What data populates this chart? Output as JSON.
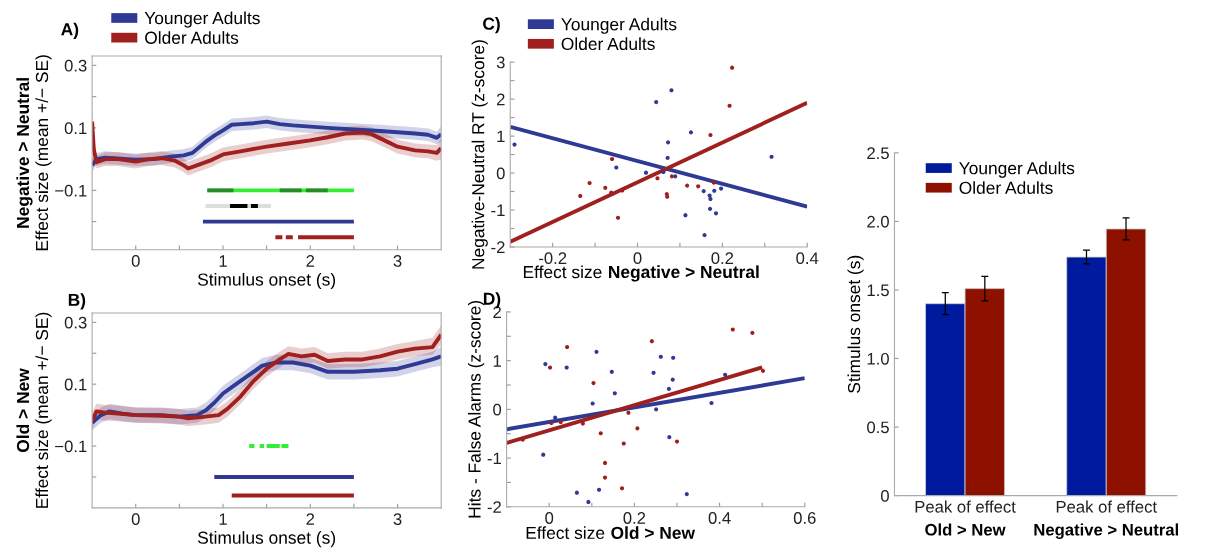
{
  "chart_data": [
    {
      "type": "line",
      "title": "A)",
      "xlabel": "Stimulus onset (s)",
      "ylabel": "Effect size (mean +/− SE)",
      "annotations": [
        "Negative > Neutral"
      ],
      "xlim": [
        -0.5,
        3.5
      ],
      "ylim": [
        -0.29,
        0.33
      ],
      "xticks": [
        0,
        {
          "value": 0.5,
          "label": null
        },
        1,
        {
          "value": 1.5,
          "label": null
        },
        2,
        {
          "value": 2.5,
          "label": null
        },
        3
      ],
      "yticks": [
        {
          "value": -0.2,
          "label": null
        },
        {
          "value": -0.1,
          "label": "−0.1"
        },
        {
          "value": 0,
          "label": null
        },
        0.1,
        {
          "value": 0.2,
          "label": null
        },
        0.3
      ],
      "legend": "top",
      "series": [
        {
          "name": "Younger Adults",
          "color": "#2e3a94",
          "x": [
            -0.5,
            -0.45,
            -0.35,
            -0.25,
            -0.1,
            0,
            0.2,
            0.4,
            0.55,
            0.65,
            0.8,
            0.9,
            1.0,
            1.1,
            1.2,
            1.35,
            1.5,
            1.65,
            1.8,
            2.0,
            2.2,
            2.5,
            2.8,
            3.0,
            3.2,
            3.35,
            3.45,
            3.5
          ],
          "values": [
            -0.02,
            0.0,
            0.005,
            0.003,
            0.0,
            -0.002,
            0.0,
            0.008,
            0.012,
            0.02,
            0.055,
            0.075,
            0.092,
            0.11,
            0.112,
            0.115,
            0.12,
            0.112,
            0.108,
            0.104,
            0.1,
            0.095,
            0.09,
            0.086,
            0.082,
            0.078,
            0.068,
            0.08
          ],
          "lower": [
            -0.04,
            -0.02,
            -0.015,
            -0.017,
            -0.02,
            -0.022,
            -0.02,
            -0.012,
            -0.008,
            0.0,
            0.035,
            0.055,
            0.072,
            0.09,
            0.092,
            0.095,
            0.1,
            0.092,
            0.088,
            0.084,
            0.08,
            0.075,
            0.07,
            0.066,
            0.062,
            0.058,
            0.048,
            0.055
          ],
          "upper": [
            0.0,
            0.02,
            0.025,
            0.023,
            0.02,
            0.018,
            0.02,
            0.028,
            0.032,
            0.04,
            0.075,
            0.095,
            0.112,
            0.13,
            0.132,
            0.135,
            0.14,
            0.132,
            0.128,
            0.124,
            0.12,
            0.115,
            0.11,
            0.106,
            0.102,
            0.098,
            0.088,
            0.105
          ]
        },
        {
          "name": "Older Adults",
          "color": "#a01f1f",
          "x": [
            -0.5,
            -0.48,
            -0.45,
            -0.35,
            -0.2,
            0,
            0.15,
            0.3,
            0.45,
            0.55,
            0.6,
            0.7,
            0.85,
            1.0,
            1.2,
            1.5,
            1.75,
            2.0,
            2.2,
            2.4,
            2.6,
            2.7,
            2.85,
            3.0,
            3.2,
            3.35,
            3.45,
            3.5
          ],
          "values": [
            0.12,
            0.03,
            -0.01,
            0.0,
            0.0,
            -0.008,
            0.0,
            0.003,
            -0.005,
            -0.02,
            -0.03,
            -0.02,
            -0.005,
            0.015,
            0.025,
            0.04,
            0.05,
            0.06,
            0.07,
            0.082,
            0.085,
            0.08,
            0.06,
            0.04,
            0.028,
            0.025,
            0.02,
            0.035
          ],
          "lower": [
            0.08,
            0.0,
            -0.03,
            -0.022,
            -0.022,
            -0.03,
            -0.022,
            -0.019,
            -0.027,
            -0.042,
            -0.052,
            -0.042,
            -0.027,
            -0.007,
            0.003,
            0.018,
            0.028,
            0.038,
            0.048,
            0.06,
            0.063,
            0.058,
            0.038,
            0.018,
            0.006,
            0.003,
            -0.005,
            0.0
          ],
          "upper": [
            0.16,
            0.06,
            0.01,
            0.022,
            0.022,
            0.014,
            0.022,
            0.025,
            0.017,
            0.002,
            -0.008,
            0.002,
            0.017,
            0.037,
            0.047,
            0.062,
            0.072,
            0.082,
            0.092,
            0.104,
            0.107,
            0.102,
            0.082,
            0.062,
            0.05,
            0.047,
            0.045,
            0.07
          ]
        },
        {
          "color": "#33ee33",
          "x": [
            0.82,
            2.5
          ],
          "values": [
            -0.1,
            -0.1
          ]
        },
        {
          "color": "#2a8a2a",
          "x": [
            0.82,
            1.12,
            1.13,
            1.65,
            1.9,
            1.92,
            1.95,
            2.2
          ],
          "values": [
            -0.1,
            -0.1,
            null,
            -0.1,
            -0.1,
            null,
            -0.1,
            -0.1
          ]
        },
        {
          "color": "#dddddd",
          "x": [
            0.8,
            1.55
          ],
          "values": [
            -0.15,
            -0.15
          ]
        },
        {
          "color": "#000000",
          "x": [
            1.08,
            1.28,
            1.3,
            1.32,
            1.4
          ],
          "values": [
            -0.15,
            -0.15,
            null,
            -0.15,
            -0.15
          ]
        },
        {
          "color": "#2e3a94",
          "x": [
            0.77,
            2.5
          ],
          "values": [
            -0.2,
            -0.2
          ]
        },
        {
          "color": "#a01f1f",
          "x": [
            1.6,
            1.68,
            1.7,
            1.72,
            1.8,
            1.82,
            1.86,
            2.5
          ],
          "values": [
            -0.25,
            -0.25,
            null,
            -0.25,
            -0.25,
            null,
            -0.25,
            -0.25
          ]
        }
      ]
    },
    {
      "type": "line",
      "title": "B)",
      "xlabel": "Stimulus onset (s)",
      "ylabel": "Effect size (mean +/− SE)",
      "annotations": [
        "Old > New"
      ],
      "xlim": [
        -0.5,
        3.5
      ],
      "ylim": [
        -0.3,
        0.33
      ],
      "xticks": [
        0,
        {
          "value": 0.5,
          "label": null
        },
        1,
        {
          "value": 1.5,
          "label": null
        },
        2,
        {
          "value": 2.5,
          "label": null
        },
        3
      ],
      "yticks": [
        {
          "value": -0.2,
          "label": null
        },
        {
          "value": -0.1,
          "label": "−0.1"
        },
        {
          "value": 0,
          "label": null
        },
        0.1,
        {
          "value": 0.2,
          "label": null
        },
        0.3
      ],
      "series": [
        {
          "color": "#2e3a94",
          "x": [
            -0.5,
            -0.4,
            -0.3,
            -0.15,
            0,
            0.3,
            0.5,
            0.7,
            0.8,
            0.9,
            1.0,
            1.15,
            1.3,
            1.45,
            1.6,
            1.8,
            2.0,
            2.2,
            2.5,
            2.8,
            3.0,
            3.2,
            3.4,
            3.5
          ],
          "values": [
            -0.025,
            0.0,
            0.012,
            0.005,
            0.0,
            0.0,
            -0.005,
            0.0,
            0.015,
            0.04,
            0.07,
            0.1,
            0.13,
            0.16,
            0.17,
            0.17,
            0.16,
            0.14,
            0.14,
            0.145,
            0.15,
            0.165,
            0.18,
            0.19
          ],
          "lower": [
            -0.05,
            -0.025,
            -0.013,
            -0.02,
            -0.025,
            -0.025,
            -0.03,
            -0.025,
            -0.01,
            0.015,
            0.045,
            0.075,
            0.105,
            0.135,
            0.145,
            0.145,
            0.135,
            0.115,
            0.115,
            0.12,
            0.125,
            0.14,
            0.155,
            0.16
          ],
          "upper": [
            0.0,
            0.025,
            0.037,
            0.03,
            0.025,
            0.025,
            0.02,
            0.025,
            0.04,
            0.065,
            0.095,
            0.125,
            0.155,
            0.185,
            0.195,
            0.195,
            0.185,
            0.165,
            0.165,
            0.17,
            0.175,
            0.19,
            0.205,
            0.22
          ]
        },
        {
          "color": "#a01f1f",
          "x": [
            -0.5,
            -0.45,
            -0.35,
            -0.2,
            0,
            0.3,
            0.5,
            0.6,
            0.8,
            0.95,
            1.05,
            1.2,
            1.35,
            1.5,
            1.65,
            1.75,
            1.9,
            2.05,
            2.2,
            2.4,
            2.6,
            2.8,
            3.0,
            3.2,
            3.4,
            3.5
          ],
          "values": [
            -0.02,
            0.012,
            0.008,
            0.005,
            0.0,
            -0.002,
            -0.005,
            -0.01,
            -0.005,
            0.0,
            0.02,
            0.06,
            0.11,
            0.15,
            0.18,
            0.198,
            0.19,
            0.195,
            0.175,
            0.18,
            0.18,
            0.19,
            0.205,
            0.215,
            0.22,
            0.26
          ],
          "lower": [
            -0.05,
            -0.013,
            -0.017,
            -0.02,
            -0.025,
            -0.027,
            -0.03,
            -0.035,
            -0.03,
            -0.025,
            -0.005,
            0.035,
            0.085,
            0.125,
            0.155,
            0.173,
            0.165,
            0.17,
            0.15,
            0.155,
            0.155,
            0.165,
            0.18,
            0.19,
            0.195,
            0.23
          ],
          "upper": [
            0.01,
            0.037,
            0.033,
            0.03,
            0.025,
            0.023,
            0.02,
            0.015,
            0.02,
            0.025,
            0.045,
            0.085,
            0.135,
            0.175,
            0.205,
            0.223,
            0.215,
            0.22,
            0.2,
            0.205,
            0.205,
            0.215,
            0.23,
            0.24,
            0.25,
            0.29
          ]
        },
        {
          "color": "#33ee33",
          "x": [
            1.3,
            1.36,
            1.37,
            1.42,
            1.47,
            1.48,
            1.5,
            1.65,
            1.66,
            1.67,
            1.75
          ],
          "values": [
            -0.1,
            -0.1,
            null,
            -0.1,
            -0.1,
            null,
            -0.1,
            -0.1,
            null,
            -0.1,
            -0.1
          ]
        },
        {
          "color": "#2e3a94",
          "x": [
            0.9,
            2.5
          ],
          "values": [
            -0.2,
            -0.2
          ]
        },
        {
          "color": "#a01f1f",
          "x": [
            1.1,
            2.5
          ],
          "values": [
            -0.26,
            -0.26
          ]
        }
      ]
    },
    {
      "type": "scatter",
      "title": "C)",
      "xlabel": "Effect size",
      "ylabel": "Negative-Neutral RT (z-score)",
      "annotations": [
        "Negative > Neutral"
      ],
      "xlim": [
        -0.3,
        0.4
      ],
      "ylim": [
        -2,
        3
      ],
      "xticks": [
        -0.2,
        {
          "value": -0.1,
          "label": null
        },
        0,
        {
          "value": 0.1,
          "label": null
        },
        0.2,
        {
          "value": 0.3,
          "label": null
        },
        0.4
      ],
      "yticks": [
        -2,
        {
          "value": -1.5,
          "label": null
        },
        -1,
        {
          "value": -0.5,
          "label": null
        },
        0,
        {
          "value": 0.5,
          "label": null
        },
        1,
        {
          "value": 1.5,
          "label": null
        },
        2,
        {
          "value": 2.5,
          "label": null
        },
        3
      ],
      "legend": "top",
      "marker": "circle",
      "series": [
        {
          "name": "Younger Adults",
          "color": "#2e3a94",
          "x": [
            -0.29,
            -0.05,
            0.02,
            0.044,
            0.061,
            0.071,
            0.072,
            0.08,
            0.089,
            0.126,
            0.113,
            0.156,
            0.158,
            0.17,
            0.172,
            0.171,
            0.181,
            0.185,
            0.197,
            0.316
          ],
          "values": [
            0.77,
            0.15,
            0.01,
            1.92,
            0.03,
            0.41,
            0.83,
            2.24,
            -0.09,
            1.1,
            -1.14,
            -0.49,
            -1.68,
            -0.61,
            -0.7,
            -0.97,
            -0.48,
            -1.09,
            -0.42,
            0.44
          ]
        },
        {
          "name": "Older Adults",
          "color": "#a01f1f",
          "x": [
            -0.135,
            -0.113,
            -0.076,
            -0.062,
            -0.06,
            -0.046,
            -0.036,
            0.047,
            0.081,
            0.069,
            0.07,
            0.117,
            0.143,
            0.172,
            0.18,
            0.217,
            0.223
          ],
          "values": [
            -0.62,
            -0.27,
            -0.4,
            -0.53,
            0.38,
            -1.21,
            -0.47,
            -0.14,
            -0.09,
            -0.57,
            -0.64,
            -0.34,
            -0.36,
            1.03,
            -0.26,
            1.82,
            2.85
          ]
        },
        {
          "type": "line",
          "marker": "none",
          "color": "#2e3a94",
          "x": [
            -0.3,
            0.4
          ],
          "values": [
            1.25,
            -0.91
          ]
        },
        {
          "type": "line",
          "marker": "none",
          "color": "#a01f1f",
          "x": [
            -0.3,
            0.4
          ],
          "values": [
            -1.86,
            1.9
          ]
        }
      ]
    },
    {
      "type": "scatter",
      "title": "D)",
      "xlabel": "Effect size",
      "ylabel": "Hits - False Alarms (z-score)",
      "annotations": [
        "Old > New"
      ],
      "xlim": [
        -0.1,
        0.6
      ],
      "ylim": [
        -2,
        2
      ],
      "xticks": [
        0,
        {
          "value": 0.1,
          "label": null
        },
        0.2,
        {
          "value": 0.3,
          "label": null
        },
        0.4,
        {
          "value": 0.5,
          "label": null
        },
        0.6
      ],
      "yticks": [
        -2,
        {
          "value": -1.5,
          "label": null
        },
        -1,
        {
          "value": -0.5,
          "label": null
        },
        0,
        {
          "value": 0.5,
          "label": null
        },
        1,
        {
          "value": 1.5,
          "label": null
        },
        2
      ],
      "marker": "circle",
      "series": [
        {
          "color": "#2e3a94",
          "x": [
            -0.009,
            0.041,
            -0.014,
            0.014,
            0.065,
            0.092,
            0.102,
            0.111,
            0.117,
            0.147,
            0.154,
            0.245,
            0.251,
            0.262,
            0.281,
            0.29,
            0.291,
            0.282,
            0.323,
            0.381,
            0.413
          ],
          "values": [
            0.93,
            0.86,
            -0.93,
            -0.17,
            -1.71,
            -1.9,
            0.12,
            1.18,
            -1.65,
            0.77,
            0.33,
            0.75,
            0.0,
            1.08,
            0.42,
            0.61,
            1.06,
            -0.57,
            -1.74,
            0.13,
            0.71
          ]
        },
        {
          "color": "#a01f1f",
          "x": [
            -0.062,
            0.002,
            0.005,
            0.027,
            0.042,
            0.079,
            0.104,
            0.121,
            0.131,
            0.131,
            0.171,
            0.175,
            0.186,
            0.207,
            0.241,
            0.3,
            0.431,
            0.477,
            0.502
          ],
          "values": [
            -0.62,
            0.86,
            -0.28,
            -0.26,
            1.28,
            -0.29,
            0.54,
            -0.49,
            -1.1,
            -1.4,
            -1.62,
            -0.7,
            -0.07,
            -0.39,
            1.4,
            -0.66,
            1.64,
            1.57,
            0.79
          ]
        },
        {
          "type": "line",
          "marker": "none",
          "color": "#2e3a94",
          "x": [
            -0.1,
            0.6
          ],
          "values": [
            -0.41,
            0.64
          ]
        },
        {
          "type": "line",
          "marker": "none",
          "color": "#a01f1f",
          "x": [
            -0.1,
            0.5
          ],
          "values": [
            -0.69,
            0.86
          ]
        }
      ]
    },
    {
      "type": "bar",
      "ylabel": "Stimulus onset (s)",
      "categories": [
        "Peak of effect\nOld > New",
        "Peak of effect\nNegative > Neutral"
      ],
      "ylim": [
        0,
        2.5
      ],
      "yticks": [
        0,
        0.5,
        {
          "value": 1,
          "label": "1.0"
        },
        1.5,
        {
          "value": 2,
          "label": "2.0"
        },
        2.5
      ],
      "legend": "top left",
      "series": [
        {
          "name": "Younger Adults",
          "color": "#001a9e",
          "values": [
            1.4,
            1.74
          ],
          "errors": [
            0.08,
            0.05
          ]
        },
        {
          "name": "Older Adults",
          "color": "#8e1100",
          "values": [
            1.51,
            1.945
          ],
          "errors": [
            0.09,
            0.08
          ]
        }
      ]
    }
  ]
}
